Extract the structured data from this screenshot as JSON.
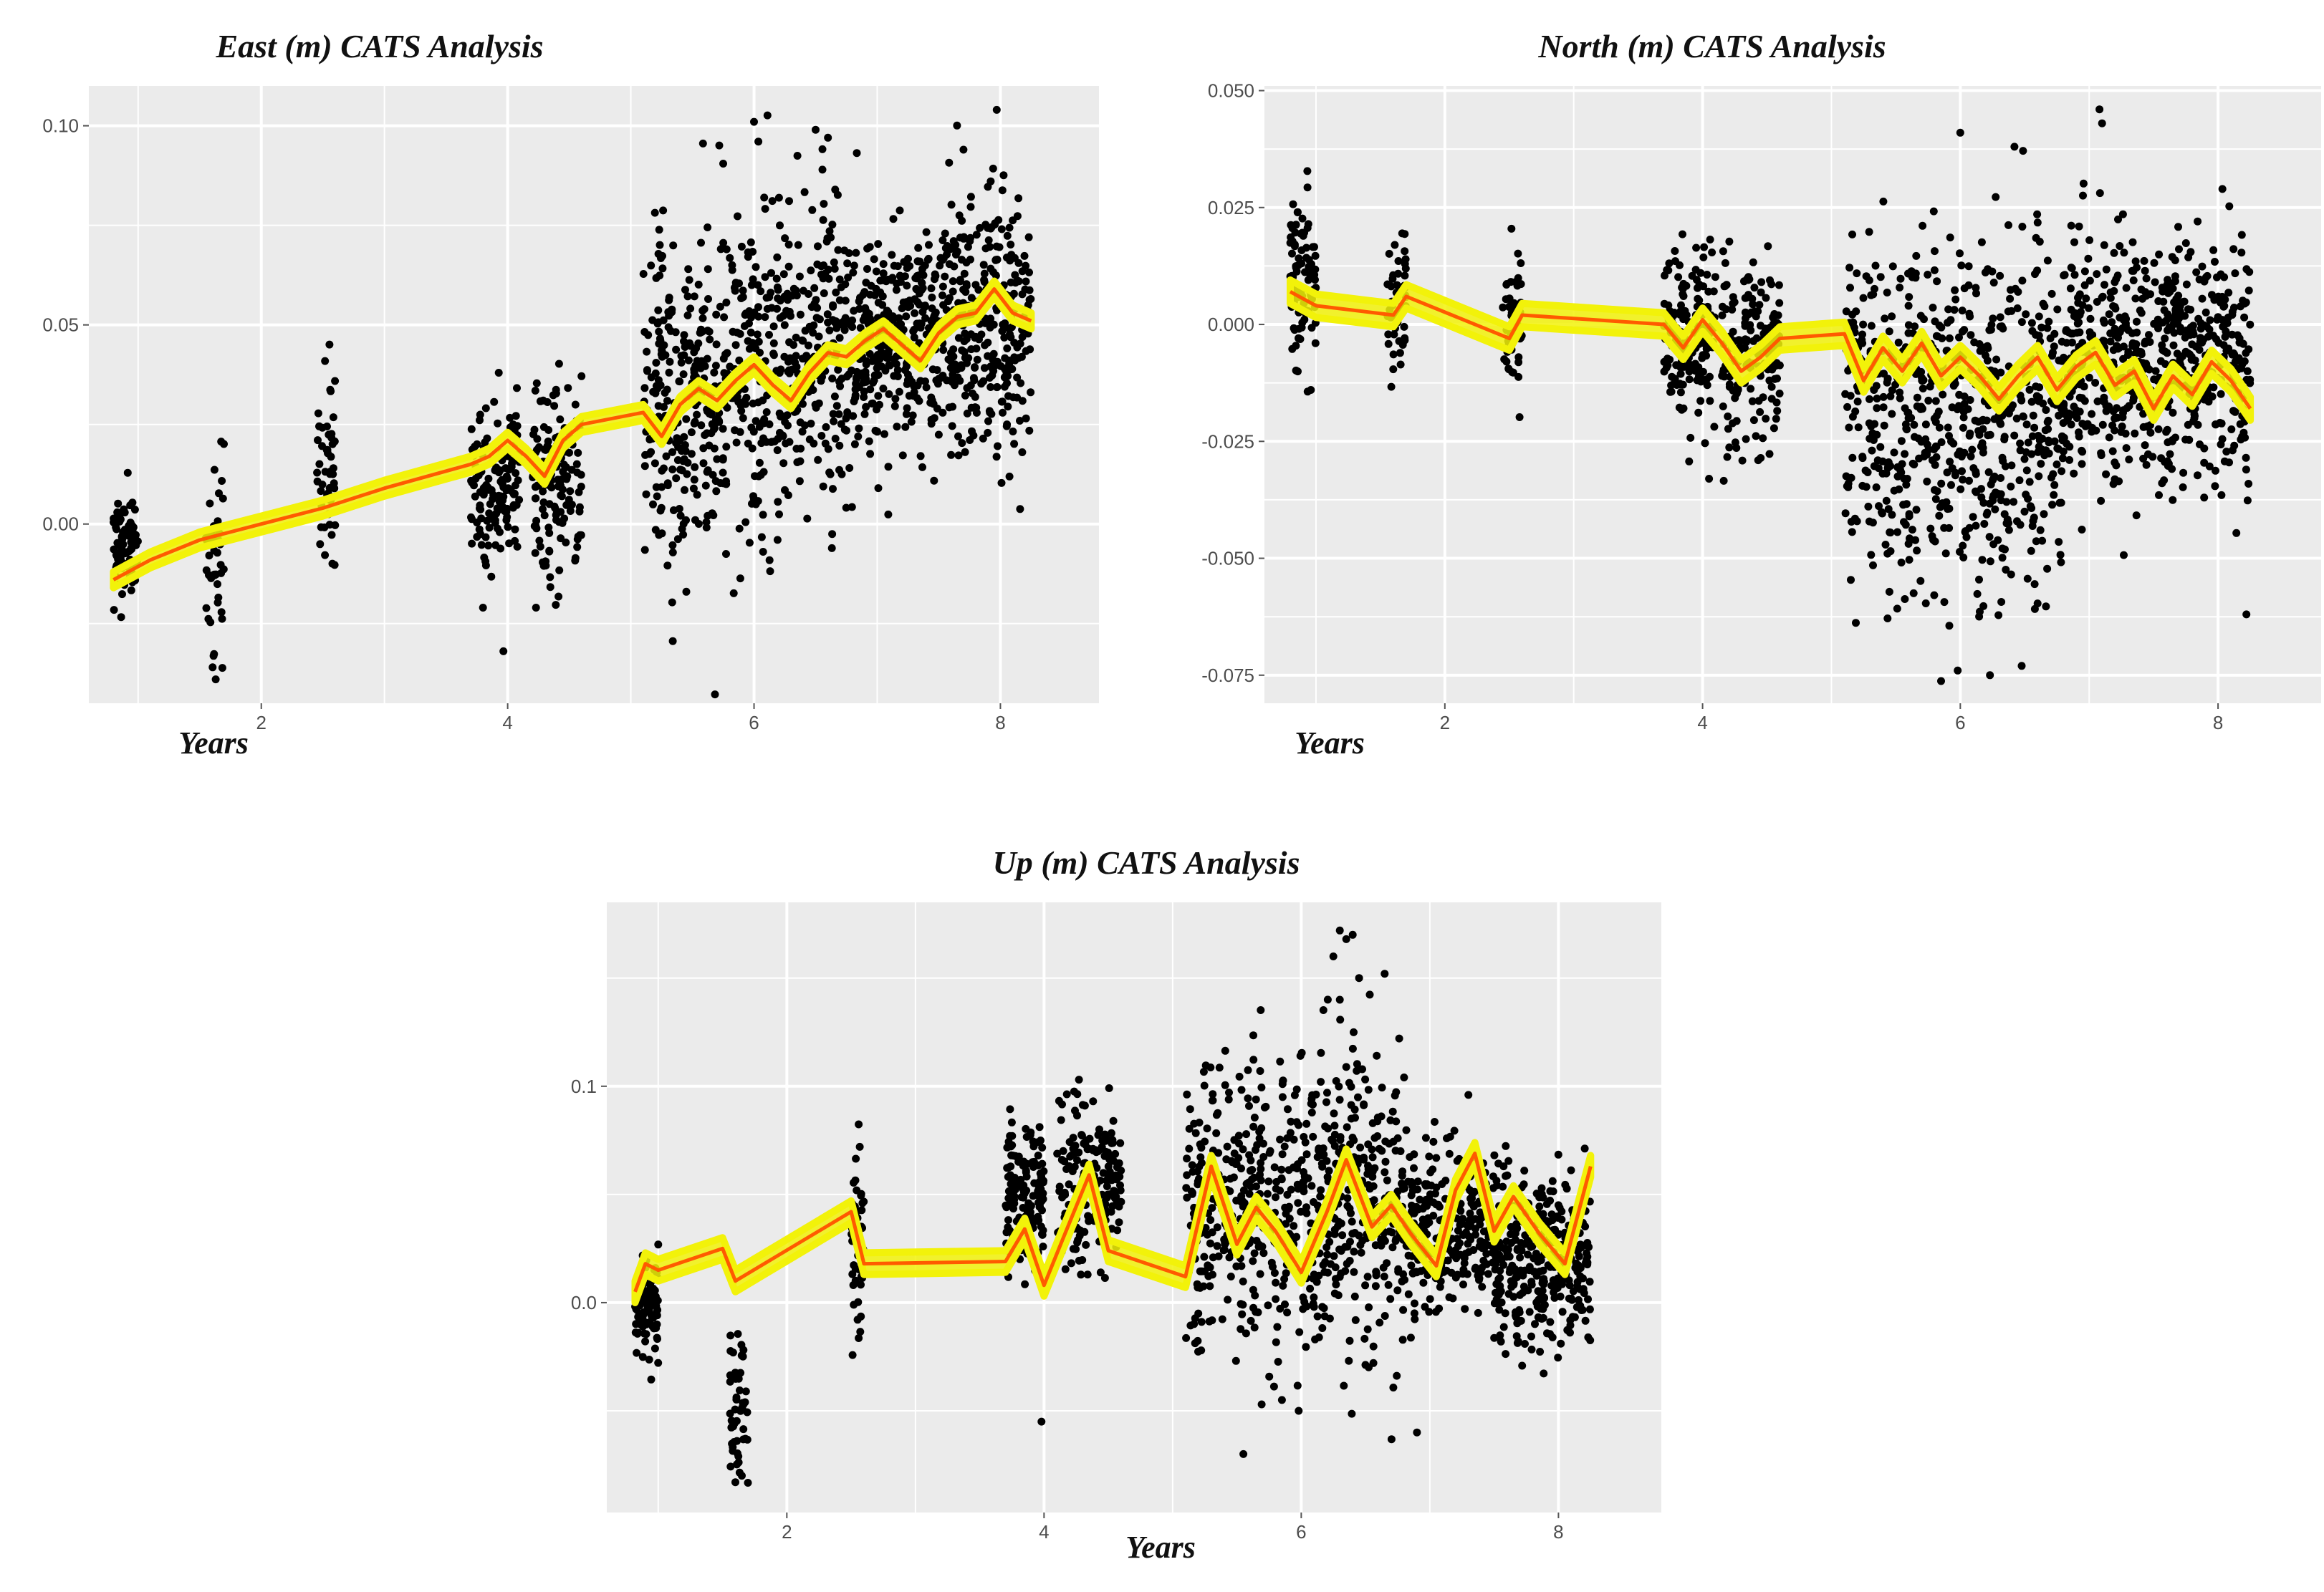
{
  "colors": {
    "panel_bg": "#ebebeb",
    "grid": "#ffffff",
    "points": "#000000",
    "band": "#f2f20a",
    "line": "#ff5a00"
  },
  "chart_data": [
    {
      "id": "east",
      "type": "scatter",
      "title": "East (m)  CATS Analysis",
      "xlabel": "Years",
      "ylabel": "",
      "xlim": [
        0.6,
        8.8
      ],
      "ylim": [
        -0.045,
        0.11
      ],
      "x_ticks": [
        2,
        4,
        6,
        8
      ],
      "x_tick_labels": [
        "2",
        "4",
        "6",
        "8"
      ],
      "y_ticks": [
        0.0,
        0.05,
        0.1
      ],
      "y_tick_labels": [
        "0.00",
        "0.05",
        "0.10"
      ],
      "clusters": [
        {
          "x0": 0.8,
          "x1": 1.0,
          "n": 90,
          "base": -0.005,
          "slope": 0,
          "sd": 0.006
        },
        {
          "x0": 1.55,
          "x1": 1.7,
          "n": 45,
          "base": -0.008,
          "slope": 0,
          "sd": 0.012
        },
        {
          "x0": 2.45,
          "x1": 2.6,
          "n": 50,
          "base": 0.015,
          "slope": 0,
          "sd": 0.013
        },
        {
          "x0": 3.7,
          "x1": 4.1,
          "n": 140,
          "base": 0.01,
          "slope": 0,
          "sd": 0.01
        },
        {
          "x0": 4.2,
          "x1": 4.6,
          "n": 150,
          "base": 0.012,
          "slope": 0,
          "sd": 0.012
        },
        {
          "x0": 5.1,
          "x1": 6.8,
          "n": 650,
          "base": 0.028,
          "slope": 0.011,
          "sd": 0.02
        },
        {
          "x0": 6.8,
          "x1": 7.5,
          "n": 300,
          "base": 0.045,
          "slope": 0.004,
          "sd": 0.014
        },
        {
          "x0": 7.5,
          "x1": 8.25,
          "n": 330,
          "base": 0.052,
          "slope": 0,
          "sd": 0.015
        }
      ],
      "outliers": [
        [
          6.0,
          0.101
        ],
        [
          7.97,
          0.104
        ],
        [
          7.7,
          0.094
        ],
        [
          6.5,
          0.099
        ],
        [
          1.63,
          -0.039
        ],
        [
          5.45,
          -0.017
        ],
        [
          3.8,
          -0.021
        ],
        [
          4.23,
          -0.021
        ],
        [
          6.6,
          0.097
        ]
      ],
      "fit": {
        "x": [
          0.8,
          1.1,
          1.5,
          2.0,
          2.5,
          3.0,
          3.7,
          3.85,
          4.0,
          4.15,
          4.3,
          4.45,
          4.6,
          5.1,
          5.25,
          5.4,
          5.55,
          5.7,
          5.85,
          6.0,
          6.15,
          6.3,
          6.45,
          6.6,
          6.75,
          6.9,
          7.05,
          7.2,
          7.35,
          7.5,
          7.65,
          7.8,
          7.95,
          8.1,
          8.25
        ],
        "y": [
          -0.014,
          -0.009,
          -0.004,
          0.0,
          0.004,
          0.009,
          0.015,
          0.017,
          0.021,
          0.017,
          0.012,
          0.021,
          0.025,
          0.028,
          0.022,
          0.03,
          0.034,
          0.031,
          0.036,
          0.04,
          0.035,
          0.031,
          0.038,
          0.043,
          0.042,
          0.046,
          0.049,
          0.045,
          0.041,
          0.048,
          0.052,
          0.053,
          0.059,
          0.053,
          0.051
        ],
        "band": 0.002
      }
    },
    {
      "id": "north",
      "type": "scatter",
      "title": "North (m)  CATS Analysis",
      "xlabel": "Years",
      "ylabel": "",
      "xlim": [
        0.6,
        8.8
      ],
      "ylim": [
        -0.081,
        0.051
      ],
      "x_ticks": [
        2,
        4,
        6,
        8
      ],
      "x_tick_labels": [
        "2",
        "4",
        "6",
        "8"
      ],
      "y_ticks": [
        -0.075,
        -0.05,
        -0.025,
        0.0,
        0.025,
        0.05
      ],
      "y_tick_labels": [
        "-0.075",
        "-0.050",
        "-0.025",
        "0.000",
        "0.025",
        "0.050"
      ],
      "clusters": [
        {
          "x0": 0.8,
          "x1": 1.0,
          "n": 90,
          "base": 0.01,
          "slope": 0,
          "sd": 0.008
        },
        {
          "x0": 1.55,
          "x1": 1.7,
          "n": 50,
          "base": 0.006,
          "slope": 0,
          "sd": 0.009
        },
        {
          "x0": 2.45,
          "x1": 2.6,
          "n": 55,
          "base": 0.0,
          "slope": 0,
          "sd": 0.008
        },
        {
          "x0": 3.7,
          "x1": 4.1,
          "n": 160,
          "base": -0.003,
          "slope": 0,
          "sd": 0.009
        },
        {
          "x0": 4.15,
          "x1": 4.6,
          "n": 170,
          "base": -0.005,
          "slope": 0,
          "sd": 0.01
        },
        {
          "x0": 5.1,
          "x1": 6.8,
          "n": 680,
          "base": -0.02,
          "slope": 0,
          "sd": 0.019
        },
        {
          "x0": 6.8,
          "x1": 7.5,
          "n": 300,
          "base": -0.008,
          "slope": 0,
          "sd": 0.013
        },
        {
          "x0": 7.5,
          "x1": 8.25,
          "n": 340,
          "base": -0.008,
          "slope": 0,
          "sd": 0.014
        }
      ],
      "outliers": [
        [
          5.98,
          -0.074
        ],
        [
          6.23,
          -0.075
        ],
        [
          7.08,
          0.046
        ],
        [
          7.1,
          0.043
        ],
        [
          0.96,
          -0.014
        ],
        [
          8.22,
          -0.062
        ],
        [
          4.05,
          -0.033
        ],
        [
          6.0,
          0.041
        ],
        [
          6.42,
          0.038
        ]
      ],
      "fit": {
        "x": [
          0.8,
          1.0,
          1.6,
          1.7,
          2.5,
          2.6,
          3.7,
          3.85,
          4.0,
          4.15,
          4.3,
          4.45,
          4.6,
          5.1,
          5.25,
          5.4,
          5.55,
          5.7,
          5.85,
          6.0,
          6.15,
          6.3,
          6.45,
          6.6,
          6.75,
          6.9,
          7.05,
          7.2,
          7.35,
          7.5,
          7.65,
          7.8,
          7.95,
          8.1,
          8.25
        ],
        "y": [
          0.007,
          0.004,
          0.002,
          0.006,
          -0.003,
          0.002,
          0.0,
          -0.005,
          0.001,
          -0.004,
          -0.01,
          -0.007,
          -0.003,
          -0.002,
          -0.012,
          -0.005,
          -0.01,
          -0.004,
          -0.011,
          -0.007,
          -0.011,
          -0.016,
          -0.011,
          -0.007,
          -0.014,
          -0.009,
          -0.006,
          -0.013,
          -0.01,
          -0.018,
          -0.011,
          -0.015,
          -0.008,
          -0.012,
          -0.018
        ],
        "band": 0.0025
      }
    },
    {
      "id": "up",
      "type": "scatter",
      "title": "Up (m)  CATS Analysis",
      "xlabel": "Years",
      "ylabel": "",
      "xlim": [
        0.6,
        8.8
      ],
      "ylim": [
        -0.097,
        0.185
      ],
      "x_ticks": [
        2,
        4,
        6,
        8
      ],
      "x_tick_labels": [
        "2",
        "4",
        "6",
        "8"
      ],
      "y_ticks": [
        0.0,
        0.1
      ],
      "y_tick_labels": [
        "0.0",
        "0.1"
      ],
      "clusters": [
        {
          "x0": 0.82,
          "x1": 1.0,
          "n": 90,
          "base": 0.0,
          "slope": 0,
          "sd": 0.014
        },
        {
          "x0": 1.55,
          "x1": 1.7,
          "n": 50,
          "base": -0.05,
          "slope": 0,
          "sd": 0.016
        },
        {
          "x0": 2.5,
          "x1": 2.6,
          "n": 45,
          "base": 0.025,
          "slope": 0,
          "sd": 0.022
        },
        {
          "x0": 3.7,
          "x1": 4.0,
          "n": 150,
          "base": 0.05,
          "slope": 0,
          "sd": 0.016
        },
        {
          "x0": 4.1,
          "x1": 4.6,
          "n": 170,
          "base": 0.055,
          "slope": 0,
          "sd": 0.02
        },
        {
          "x0": 5.1,
          "x1": 6.8,
          "n": 650,
          "base": 0.045,
          "slope": 0,
          "sd": 0.035
        },
        {
          "x0": 6.8,
          "x1": 7.5,
          "n": 280,
          "base": 0.035,
          "slope": 0,
          "sd": 0.018
        },
        {
          "x0": 7.5,
          "x1": 8.25,
          "n": 330,
          "base": 0.02,
          "slope": 0,
          "sd": 0.022
        }
      ],
      "outliers": [
        [
          6.3,
          0.172
        ],
        [
          6.35,
          0.168
        ],
        [
          6.4,
          0.17
        ],
        [
          6.25,
          0.16
        ],
        [
          6.45,
          0.15
        ],
        [
          6.3,
          0.14
        ],
        [
          1.6,
          -0.083
        ],
        [
          1.65,
          -0.08
        ],
        [
          5.55,
          -0.07
        ],
        [
          3.98,
          -0.055
        ],
        [
          6.9,
          -0.06
        ],
        [
          5.98,
          -0.05
        ],
        [
          5.85,
          -0.045
        ],
        [
          7.3,
          0.096
        ]
      ],
      "fit": {
        "x": [
          0.82,
          0.9,
          1.0,
          1.5,
          1.6,
          2.5,
          2.6,
          3.7,
          3.85,
          4.0,
          4.15,
          4.35,
          4.5,
          5.1,
          5.3,
          5.5,
          5.65,
          5.8,
          6.0,
          6.2,
          6.35,
          6.55,
          6.7,
          6.85,
          7.05,
          7.2,
          7.35,
          7.5,
          7.65,
          7.85,
          8.05,
          8.25
        ],
        "y": [
          0.005,
          0.018,
          0.015,
          0.025,
          0.01,
          0.042,
          0.018,
          0.019,
          0.034,
          0.008,
          0.03,
          0.059,
          0.024,
          0.012,
          0.063,
          0.027,
          0.044,
          0.033,
          0.014,
          0.042,
          0.066,
          0.035,
          0.045,
          0.032,
          0.017,
          0.052,
          0.069,
          0.033,
          0.049,
          0.032,
          0.018,
          0.063
        ],
        "band": 0.005
      }
    }
  ]
}
